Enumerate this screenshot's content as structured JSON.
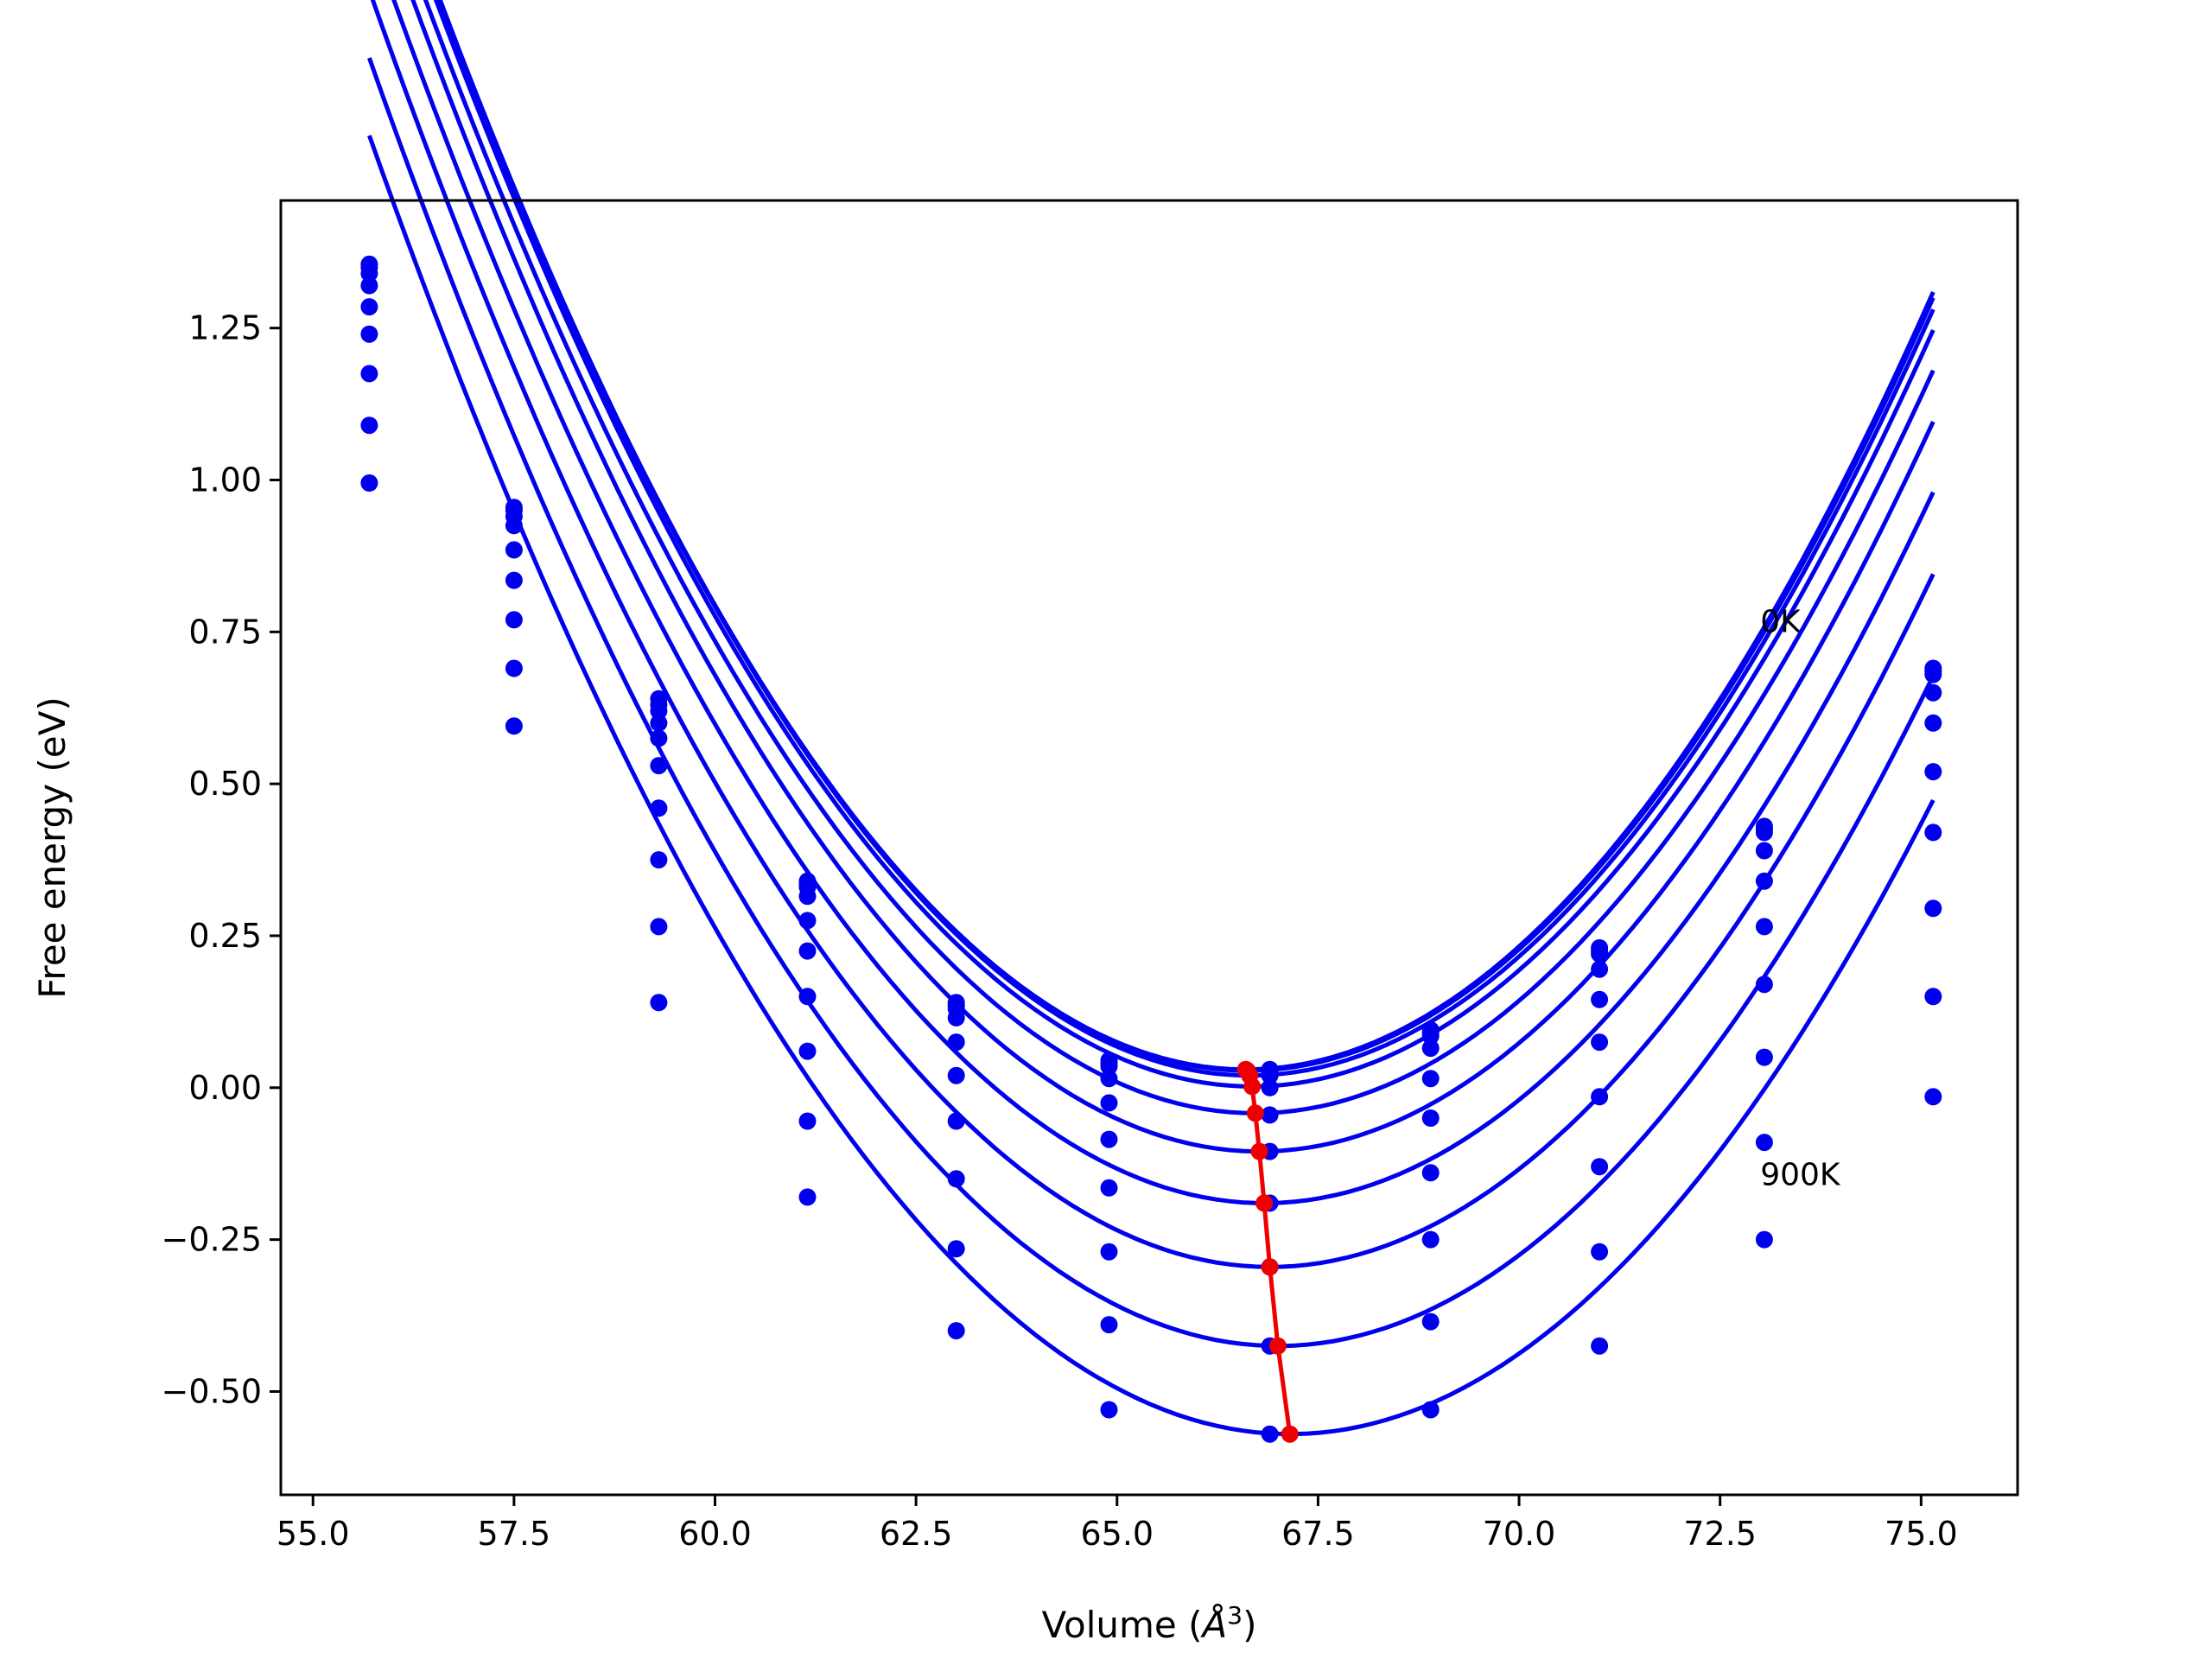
{
  "chart_data": {
    "type": "line",
    "title": "",
    "xlabel": "Volume (",
    "xlabel_unit": "Å",
    "xlabel_exp": "3",
    "xlabel_close": ")",
    "ylabel": "Free energy (eV)",
    "xlim": [
      54.6,
      76.2
    ],
    "ylim": [
      -0.67,
      1.46
    ],
    "xticks": [
      55.0,
      57.5,
      60.0,
      62.5,
      65.0,
      67.5,
      70.0,
      72.5,
      75.0
    ],
    "xtick_labels": [
      "55.0",
      "57.5",
      "60.0",
      "62.5",
      "65.0",
      "67.5",
      "70.0",
      "72.5",
      "75.0"
    ],
    "yticks": [
      -0.5,
      -0.25,
      0.0,
      0.25,
      0.5,
      0.75,
      1.0,
      1.25
    ],
    "ytick_labels": [
      "−0.50",
      "−0.25",
      "0.00",
      "0.25",
      "0.50",
      "0.75",
      "1.00",
      "1.25"
    ],
    "grid": false,
    "legend": "none",
    "curve_color": "#0000ee",
    "min_color": "#ee0000",
    "volumes": [
      55.7,
      57.5,
      59.3,
      61.15,
      63.0,
      64.9,
      66.9,
      68.9,
      71.0,
      73.05,
      75.15
    ],
    "series": [
      {
        "label": "0K",
        "fit": {
          "V0": 66.6,
          "E0": 0.03,
          "k": 0.0175
        },
        "energies": [
          1.355,
          0.955,
          0.64,
          0.34,
          0.14,
          0.045,
          0.03,
          0.095,
          0.23,
          0.43,
          0.69
        ]
      },
      {
        "fit": {
          "V0": 66.62,
          "E0": 0.028,
          "k": 0.01748
        },
        "energies": [
          1.35,
          0.95,
          0.63,
          0.335,
          0.135,
          0.04,
          0.025,
          0.09,
          0.225,
          0.425,
          0.685
        ]
      },
      {
        "fit": {
          "V0": 66.65,
          "E0": 0.02,
          "k": 0.01745
        },
        "energies": [
          1.34,
          0.94,
          0.62,
          0.33,
          0.13,
          0.035,
          0.02,
          0.085,
          0.22,
          0.42,
          0.68
        ]
      },
      {
        "fit": {
          "V0": 66.68,
          "E0": 0.002,
          "k": 0.01735
        },
        "energies": [
          1.32,
          0.925,
          0.6,
          0.315,
          0.115,
          0.015,
          0.0,
          0.065,
          0.195,
          0.39,
          0.65
        ]
      },
      {
        "fit": {
          "V0": 66.72,
          "E0": -0.042,
          "k": 0.0172
        },
        "energies": [
          1.285,
          0.885,
          0.575,
          0.275,
          0.075,
          -0.025,
          -0.045,
          0.015,
          0.145,
          0.34,
          0.6
        ]
      },
      {
        "fit": {
          "V0": 66.77,
          "E0": -0.105,
          "k": 0.0171
        },
        "energies": [
          1.24,
          0.835,
          0.53,
          0.225,
          0.02,
          -0.085,
          -0.105,
          -0.05,
          0.075,
          0.265,
          0.52
        ]
      },
      {
        "fit": {
          "V0": 66.83,
          "E0": -0.19,
          "k": 0.0169
        },
        "energies": [
          1.175,
          0.77,
          0.46,
          0.15,
          -0.055,
          -0.165,
          -0.19,
          -0.14,
          -0.015,
          0.17,
          0.42
        ]
      },
      {
        "fit": {
          "V0": 66.9,
          "E0": -0.295,
          "k": 0.01675
        },
        "energies": [
          1.09,
          0.69,
          0.375,
          0.06,
          -0.15,
          -0.27,
          -0.295,
          -0.25,
          -0.13,
          0.05,
          0.295
        ]
      },
      {
        "fit": {
          "V0": 67.0,
          "E0": -0.425,
          "k": 0.0166
        },
        "energies": [
          0.995,
          0.595,
          0.265,
          -0.055,
          -0.265,
          -0.39,
          -0.425,
          -0.385,
          -0.27,
          -0.09,
          0.15
        ]
      },
      {
        "label": "900K",
        "fit": {
          "V0": 67.15,
          "E0": -0.57,
          "k": 0.0163
        },
        "energies": [
          null,
          null,
          0.14,
          -0.18,
          -0.4,
          -0.53,
          -0.57,
          -0.53,
          -0.425,
          -0.25,
          -0.015
        ]
      }
    ],
    "minimum_path": {
      "name": "equilibrium",
      "x": [
        66.6,
        66.62,
        66.65,
        66.68,
        66.72,
        66.77,
        66.83,
        66.9,
        67.0,
        67.15
      ],
      "y": [
        0.03,
        0.028,
        0.02,
        0.002,
        -0.042,
        -0.105,
        -0.19,
        -0.295,
        -0.425,
        -0.57
      ]
    },
    "annotations": [
      {
        "text": "0K",
        "x": 73.0,
        "y": 0.75
      },
      {
        "text": "900K",
        "x": 73.0,
        "y": -0.16
      }
    ]
  }
}
